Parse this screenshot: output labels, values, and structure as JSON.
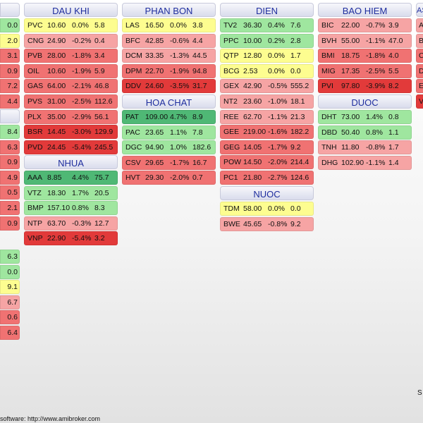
{
  "footer_text": "software:  http://www.amibroker.com",
  "corner_text": "S",
  "colors": {
    "up_strong": "#4fb875",
    "up": "#9fe69f",
    "flat": "#fdfd90",
    "down_light": "#f6a4a4",
    "down": "#f07272",
    "down_strong": "#e23a3a"
  },
  "left_partial": {
    "rows_a": [
      "0.0",
      "2.0",
      "3.1",
      "0.9",
      "7.2",
      "4.4"
    ],
    "rows_b": [
      "8.4",
      "6.3",
      "0.9",
      "4.9",
      "0.5",
      "2.1",
      "0.9"
    ],
    "rows_c": [
      "6.3",
      "0.0",
      "9.1",
      "6.7",
      "0.6",
      "6.4"
    ]
  },
  "right_partial": {
    "title": "AS",
    "rows": [
      "A",
      "B",
      "C",
      "D",
      "E",
      "V"
    ]
  },
  "groups": {
    "dau_khi": {
      "title": "DAU KHI",
      "rows": [
        {
          "s": "PVC",
          "p": "10.60",
          "c": "0.0%",
          "v": "5.8"
        },
        {
          "s": "CNG",
          "p": "24.90",
          "c": "-0.2%",
          "v": "0.4"
        },
        {
          "s": "PVB",
          "p": "28.00",
          "c": "-1.8%",
          "v": "3.4"
        },
        {
          "s": "OIL",
          "p": "10.60",
          "c": "-1.9%",
          "v": "5.9"
        },
        {
          "s": "GAS",
          "p": "64.00",
          "c": "-2.1%",
          "v": "46.8"
        },
        {
          "s": "PVS",
          "p": "31.00",
          "c": "-2.5%",
          "v": "112.6"
        },
        {
          "s": "PLX",
          "p": "35.00",
          "c": "-2.9%",
          "v": "56.1"
        },
        {
          "s": "BSR",
          "p": "14.45",
          "c": "-3.0%",
          "v": "129.9"
        },
        {
          "s": "PVD",
          "p": "24.45",
          "c": "-5.4%",
          "v": "245.5"
        }
      ]
    },
    "nhua": {
      "title": "NHUA",
      "rows": [
        {
          "s": "AAA",
          "p": "8.85",
          "c": "4.4%",
          "v": "75.7"
        },
        {
          "s": "VTZ",
          "p": "18.30",
          "c": "1.7%",
          "v": "20.5"
        },
        {
          "s": "BMP",
          "p": "157.10",
          "c": "0.8%",
          "v": "8.3"
        },
        {
          "s": "NTP",
          "p": "63.70",
          "c": "-0.3%",
          "v": "12.7"
        },
        {
          "s": "VNP",
          "p": "22.90",
          "c": "-5.4%",
          "v": "3.2"
        }
      ]
    },
    "phan_bon": {
      "title": "PHAN BON",
      "rows": [
        {
          "s": "LAS",
          "p": "16.50",
          "c": "0.0%",
          "v": "3.8"
        },
        {
          "s": "BFC",
          "p": "42.85",
          "c": "-0.6%",
          "v": "4.4"
        },
        {
          "s": "DCM",
          "p": "33.35",
          "c": "-1.3%",
          "v": "44.5"
        },
        {
          "s": "DPM",
          "p": "22.70",
          "c": "-1.9%",
          "v": "94.8"
        },
        {
          "s": "DDV",
          "p": "24.60",
          "c": "-3.5%",
          "v": "31.7"
        }
      ]
    },
    "hoa_chat": {
      "title": "HOA CHAT",
      "rows": [
        {
          "s": "PAT",
          "p": "109.00",
          "c": "4.7%",
          "v": "8.9"
        },
        {
          "s": "PAC",
          "p": "23.65",
          "c": "1.1%",
          "v": "7.8"
        },
        {
          "s": "DGC",
          "p": "94.90",
          "c": "1.0%",
          "v": "182.6"
        },
        {
          "s": "CSV",
          "p": "29.65",
          "c": "-1.7%",
          "v": "16.7"
        },
        {
          "s": "HVT",
          "p": "29.30",
          "c": "-2.0%",
          "v": "0.7"
        }
      ]
    },
    "dien": {
      "title": "DIEN",
      "rows": [
        {
          "s": "TV2",
          "p": "36.30",
          "c": "0.4%",
          "v": "7.6"
        },
        {
          "s": "PPC",
          "p": "10.00",
          "c": "0.2%",
          "v": "2.8"
        },
        {
          "s": "QTP",
          "p": "12.80",
          "c": "0.0%",
          "v": "1.7"
        },
        {
          "s": "BCG",
          "p": "2.53",
          "c": "0.0%",
          "v": "0.0"
        },
        {
          "s": "GEX",
          "p": "42.90",
          "c": "-0.5%",
          "v": "555.2"
        },
        {
          "s": "NT2",
          "p": "23.60",
          "c": "-1.0%",
          "v": "18.1"
        },
        {
          "s": "REE",
          "p": "62.70",
          "c": "-1.1%",
          "v": "21.3"
        },
        {
          "s": "GEE",
          "p": "219.00",
          "c": "-1.6%",
          "v": "182.2"
        },
        {
          "s": "GEG",
          "p": "14.05",
          "c": "-1.7%",
          "v": "9.2"
        },
        {
          "s": "POW",
          "p": "14.50",
          "c": "-2.0%",
          "v": "214.4"
        },
        {
          "s": "PC1",
          "p": "21.80",
          "c": "-2.7%",
          "v": "124.6"
        }
      ]
    },
    "nuoc": {
      "title": "NUOC",
      "rows": [
        {
          "s": "TDM",
          "p": "58.00",
          "c": "0.0%",
          "v": "0.0"
        },
        {
          "s": "BWE",
          "p": "45.65",
          "c": "-0.8%",
          "v": "9.2"
        }
      ]
    },
    "bao_hiem": {
      "title": "BAO HIEM",
      "rows": [
        {
          "s": "BIC",
          "p": "22.00",
          "c": "-0.7%",
          "v": "3.9"
        },
        {
          "s": "BVH",
          "p": "55.00",
          "c": "-1.1%",
          "v": "47.0"
        },
        {
          "s": "BMI",
          "p": "18.75",
          "c": "-1.8%",
          "v": "4.0"
        },
        {
          "s": "MIG",
          "p": "17.35",
          "c": "-2.5%",
          "v": "5.5"
        },
        {
          "s": "PVI",
          "p": "97.80",
          "c": "-3.9%",
          "v": "8.2"
        }
      ]
    },
    "duoc": {
      "title": "DUOC",
      "rows": [
        {
          "s": "DHT",
          "p": "73.00",
          "c": "1.4%",
          "v": "0.8"
        },
        {
          "s": "DBD",
          "p": "50.40",
          "c": "0.8%",
          "v": "1.1"
        },
        {
          "s": "TNH",
          "p": "11.80",
          "c": "-0.8%",
          "v": "1.7"
        },
        {
          "s": "DHG",
          "p": "102.90",
          "c": "-1.1%",
          "v": "1.4"
        }
      ]
    }
  }
}
